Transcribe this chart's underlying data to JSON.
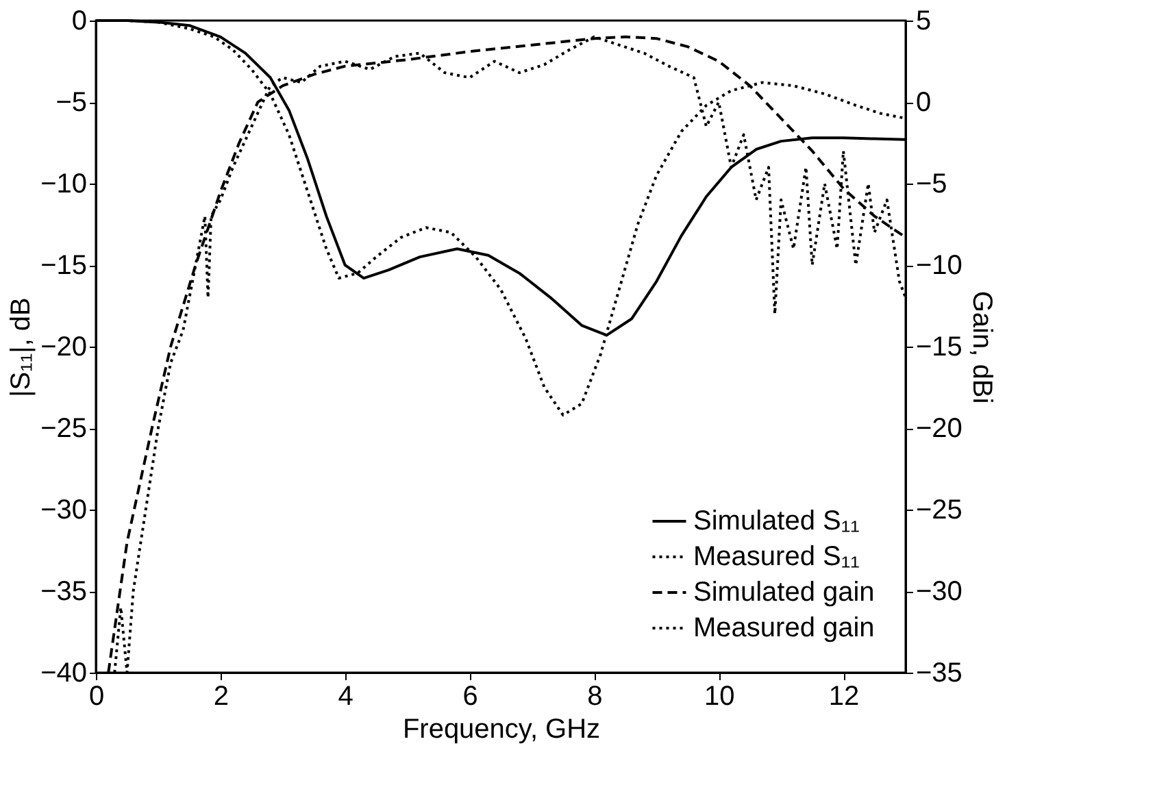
{
  "chart_data": {
    "type": "line",
    "xlabel": "Frequency, GHz",
    "ylabel": "|S₁₁|, dB",
    "y2label": "Gain, dBi",
    "xlim": [
      0,
      13
    ],
    "xticks": [
      0,
      2,
      4,
      6,
      8,
      10,
      12
    ],
    "ylim": [
      -40,
      0
    ],
    "yticks": [
      -40,
      -35,
      -30,
      -25,
      -20,
      -15,
      -10,
      -5,
      0
    ],
    "y2lim": [
      -35,
      5
    ],
    "y2ticks": [
      -35,
      -30,
      -25,
      -20,
      -15,
      -10,
      -5,
      0,
      5
    ],
    "grid": false,
    "legend": "bottom right",
    "marker": "none",
    "series": [
      {
        "name": "Simulated S₁₁",
        "color": "#000000",
        "line_style": "solid",
        "x": [
          0,
          0.5,
          1,
          1.5,
          2,
          2.4,
          2.8,
          3.1,
          3.4,
          3.7,
          4,
          4.3,
          4.7,
          5.2,
          5.8,
          6.3,
          6.8,
          7.3,
          7.8,
          8.2,
          8.6,
          9,
          9.4,
          9.8,
          10.2,
          10.6,
          11,
          11.5,
          12,
          12.5,
          13
        ],
        "values": [
          0,
          0,
          -0.1,
          -0.3,
          -1,
          -2,
          -3.5,
          -5.5,
          -8.5,
          -12,
          -15,
          -15.8,
          -15.3,
          -14.5,
          -14,
          -14.4,
          -15.5,
          -17,
          -18.7,
          -19.3,
          -18.3,
          -16,
          -13.2,
          -10.8,
          -9,
          -7.9,
          -7.4,
          -7.2,
          -7.2,
          -7.25,
          -7.3
        ]
      },
      {
        "name": "Measured S₁₁",
        "color": "#000000",
        "line_style": "dotted",
        "x": [
          0,
          0.5,
          1,
          1.5,
          1.9,
          2.2,
          2.5,
          2.8,
          3.1,
          3.4,
          3.7,
          3.9,
          4.2,
          4.5,
          4.9,
          5.3,
          5.7,
          6.1,
          6.5,
          6.9,
          7.2,
          7.5,
          7.8,
          8.1,
          8.4,
          8.7,
          9,
          9.4,
          9.8,
          10.2,
          10.7,
          11.2,
          11.7,
          12.2,
          12.6,
          13
        ],
        "values": [
          0,
          0,
          -0.1,
          -0.5,
          -1,
          -1.8,
          -3,
          -4.5,
          -7,
          -10.5,
          -14,
          -15.8,
          -15.5,
          -14.5,
          -13.3,
          -12.7,
          -13,
          -14.5,
          -16.5,
          -19.5,
          -22.5,
          -24.2,
          -23.5,
          -20.5,
          -16.5,
          -12.5,
          -9.5,
          -6.8,
          -5.2,
          -4.3,
          -3.8,
          -4,
          -4.5,
          -5.2,
          -5.7,
          -6
        ]
      },
      {
        "name": "Simulated gain",
        "color": "#000000",
        "line_style": "dashed",
        "axis": "y2",
        "x": [
          0.2,
          0.5,
          0.9,
          1.2,
          1.6,
          2,
          2.3,
          2.6,
          3,
          3.5,
          4,
          5,
          6,
          7,
          8,
          8.5,
          9,
          9.5,
          10,
          10.5,
          11,
          11.5,
          12,
          12.5,
          13
        ],
        "values": [
          -35,
          -27,
          -20,
          -15,
          -10,
          -5.5,
          -2.5,
          0,
          1,
          1.7,
          2.2,
          2.6,
          3.1,
          3.5,
          3.9,
          4,
          3.9,
          3.4,
          2.5,
          1,
          -1,
          -3,
          -5.3,
          -7,
          -8.3
        ]
      },
      {
        "name": "Measured gain",
        "color": "#000000",
        "line_style": "dotted",
        "axis": "y2",
        "x": [
          0.3,
          0.4,
          0.5,
          0.6,
          0.8,
          1,
          1.2,
          1.4,
          1.6,
          1.75,
          1.8,
          1.85,
          2,
          2.2,
          2.5,
          2.8,
          3,
          3.3,
          3.6,
          4,
          4.4,
          4.8,
          5.2,
          5.6,
          6,
          6.4,
          6.8,
          7.2,
          7.6,
          8,
          8.4,
          8.8,
          9.2,
          9.6,
          9.8,
          10,
          10.2,
          10.4,
          10.6,
          10.8,
          10.9,
          11,
          11.2,
          11.4,
          11.5,
          11.7,
          11.9,
          12,
          12.2,
          12.4,
          12.5,
          12.7,
          12.9,
          13
        ],
        "values": [
          -35,
          -31,
          -35,
          -30,
          -25,
          -20,
          -16,
          -14,
          -10,
          -7,
          -12,
          -7,
          -6,
          -4,
          -1.5,
          1,
          1.5,
          1.2,
          2.2,
          2.5,
          2,
          2.8,
          3,
          1.8,
          1.5,
          2.5,
          1.8,
          2.3,
          3.2,
          4,
          3.5,
          3,
          2.2,
          1.5,
          -1.5,
          0,
          -4,
          -2,
          -6,
          -4,
          -13,
          -6,
          -9,
          -4,
          -10,
          -5,
          -9,
          -3,
          -10,
          -5,
          -8,
          -6,
          -11,
          -12
        ]
      }
    ]
  }
}
